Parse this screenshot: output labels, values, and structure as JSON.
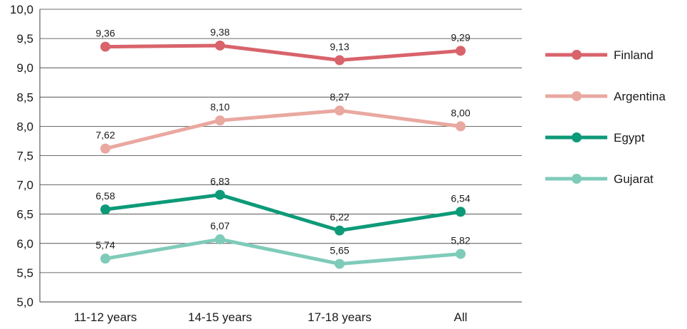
{
  "chart_data": {
    "type": "line",
    "categories": [
      "11-12 years",
      "14-15 years",
      "17-18 years",
      "All"
    ],
    "ylim": [
      5.0,
      10.0
    ],
    "yticks": [
      "10,0",
      "9,5",
      "9,0",
      "8,5",
      "8,0",
      "7,5",
      "7,0",
      "6,5",
      "6,0",
      "5,5",
      "5,0"
    ],
    "grid": true,
    "legend_position": "right",
    "series": [
      {
        "name": "Finland",
        "color": "#d9636b",
        "values": [
          9.36,
          9.38,
          9.13,
          9.29
        ],
        "labels": [
          "9,36",
          "9,38",
          "9,13",
          "9,29"
        ]
      },
      {
        "name": "Argentina",
        "color": "#e9a8a0",
        "values": [
          7.62,
          8.1,
          8.27,
          8.0
        ],
        "labels": [
          "7,62",
          "8,10",
          "8,27",
          "8,00"
        ]
      },
      {
        "name": "Egypt",
        "color": "#0d9a78",
        "values": [
          6.58,
          6.83,
          6.22,
          6.54
        ],
        "labels": [
          "6,58",
          "6,83",
          "6,22",
          "6,54"
        ]
      },
      {
        "name": "Gujarat",
        "color": "#7fcbb9",
        "values": [
          5.74,
          6.07,
          5.65,
          5.82
        ],
        "labels": [
          "5,74",
          "6,07",
          "5,65",
          "5,82"
        ]
      }
    ]
  }
}
